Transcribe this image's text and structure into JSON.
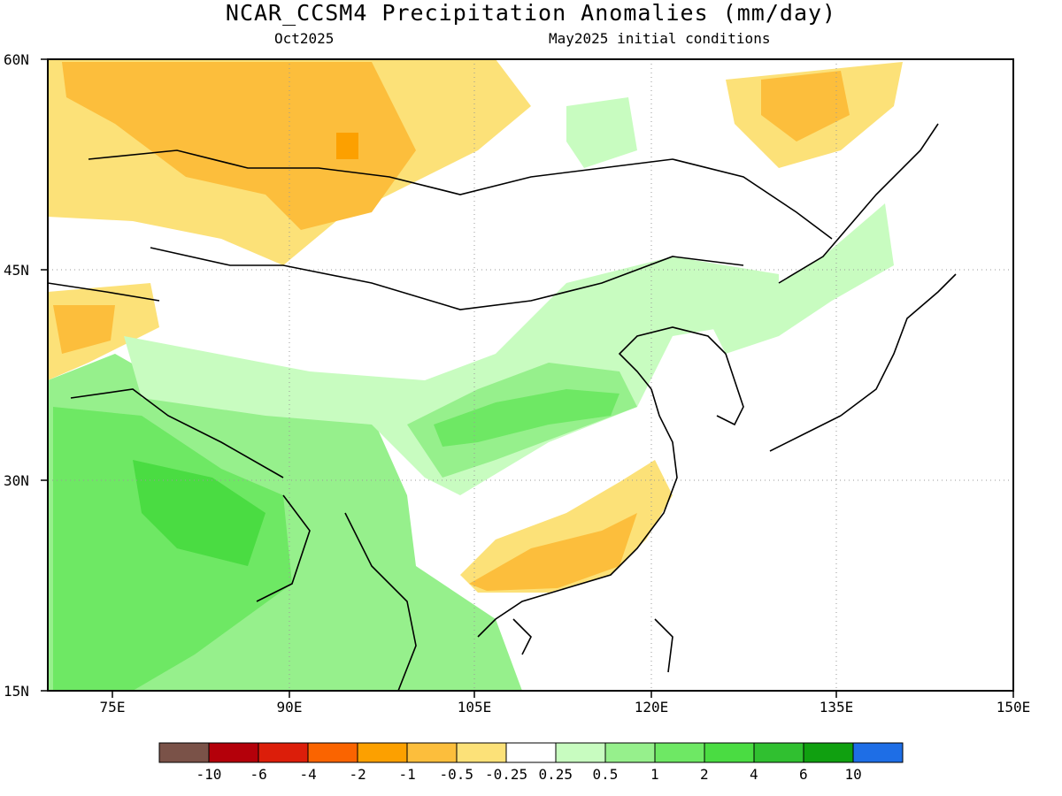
{
  "title": "NCAR_CCSM4 Precipitation Anomalies (mm/day)",
  "subtitle_left": "Oct2025",
  "subtitle_right": "May2025 initial conditions",
  "lat_labels": [
    "60N",
    "45N",
    "30N",
    "15N"
  ],
  "lon_labels": [
    "75E",
    "90E",
    "105E",
    "120E",
    "135E",
    "150E"
  ],
  "colorbar": {
    "labels": [
      "-10",
      "-6",
      "-4",
      "-2",
      "-1",
      "-0.5",
      "-0.25",
      "0.25",
      "0.5",
      "1",
      "2",
      "4",
      "6",
      "10"
    ],
    "colors": [
      "#7a5248",
      "#b4000a",
      "#dc1e0a",
      "#fa6400",
      "#fca000",
      "#fcbe3c",
      "#fce178",
      "#ffffff",
      "#c8fcc0",
      "#96f08c",
      "#6ee864",
      "#4adc42",
      "#30c030",
      "#10a010",
      "#1e6ee6"
    ]
  }
}
